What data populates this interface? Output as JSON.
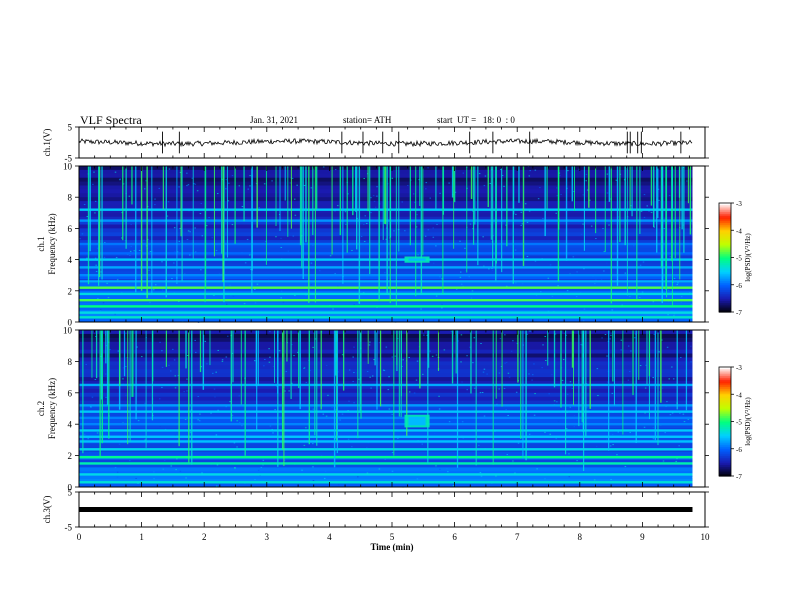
{
  "header": {
    "title": "VLF Spectra",
    "date": "Jan. 31, 2021",
    "station": "station= ATH",
    "start": "start  UT =   18: 0  : 0"
  },
  "chart_data": {
    "type": "heatmap",
    "xlabel": "Time (min)",
    "xlim": [
      0,
      10
    ],
    "xticks": [
      "0",
      "1",
      "2",
      "3",
      "4",
      "5",
      "6",
      "7",
      "8",
      "9",
      "10"
    ],
    "panels": [
      {
        "id": "ch1-wave",
        "ylabel": "ch.1(V)",
        "ylim": [
          -5,
          5
        ],
        "yticks": [
          "5",
          "-5"
        ],
        "kind": "waveform",
        "level": 0
      },
      {
        "id": "ch1-spec",
        "ylabel": "ch.1\nFrequency (kHz)",
        "ylim": [
          0,
          10
        ],
        "yticks": [
          "0",
          "2",
          "4",
          "6",
          "8",
          "10"
        ],
        "kind": "spectrogram",
        "bands_khz": [
          0.3,
          0.6,
          1.0,
          1.4,
          1.8,
          2.2,
          2.6,
          3.0,
          3.5,
          4.0,
          4.4,
          5.0,
          6.5,
          7.2
        ],
        "event": {
          "t_min": [
            5.2,
            5.6
          ],
          "f_khz": [
            3.8,
            4.2
          ]
        }
      },
      {
        "id": "ch2-spec",
        "ylabel": "ch.2\nFrequency (kHz)",
        "ylim": [
          0,
          10
        ],
        "yticks": [
          "0",
          "2",
          "4",
          "6",
          "8",
          "10"
        ],
        "kind": "spectrogram",
        "bands_khz": [
          0.3,
          0.8,
          1.5,
          1.9,
          2.4,
          2.9,
          3.2,
          3.6,
          4.0,
          4.4,
          4.8,
          5.2,
          6.5
        ],
        "event": {
          "t_min": [
            5.2,
            5.6
          ],
          "f_khz": [
            3.8,
            4.6
          ]
        }
      },
      {
        "id": "ch3-wave",
        "ylabel": "ch.3(V)",
        "ylim": [
          -5,
          5
        ],
        "yticks": [
          "5",
          "-5"
        ],
        "kind": "flat",
        "level": 0
      }
    ],
    "colorbar": {
      "label": "log(PSD)(V²/Hz)",
      "range": [
        -7,
        -3
      ],
      "ticks": [
        "-3",
        "-4",
        "-5",
        "-6",
        "-7"
      ],
      "colors": [
        "#000000",
        "#1a1ab0",
        "#0060ff",
        "#00d0ff",
        "#00ff80",
        "#c0ff00",
        "#ffd000",
        "#ff2000",
        "#ffffff"
      ]
    }
  }
}
